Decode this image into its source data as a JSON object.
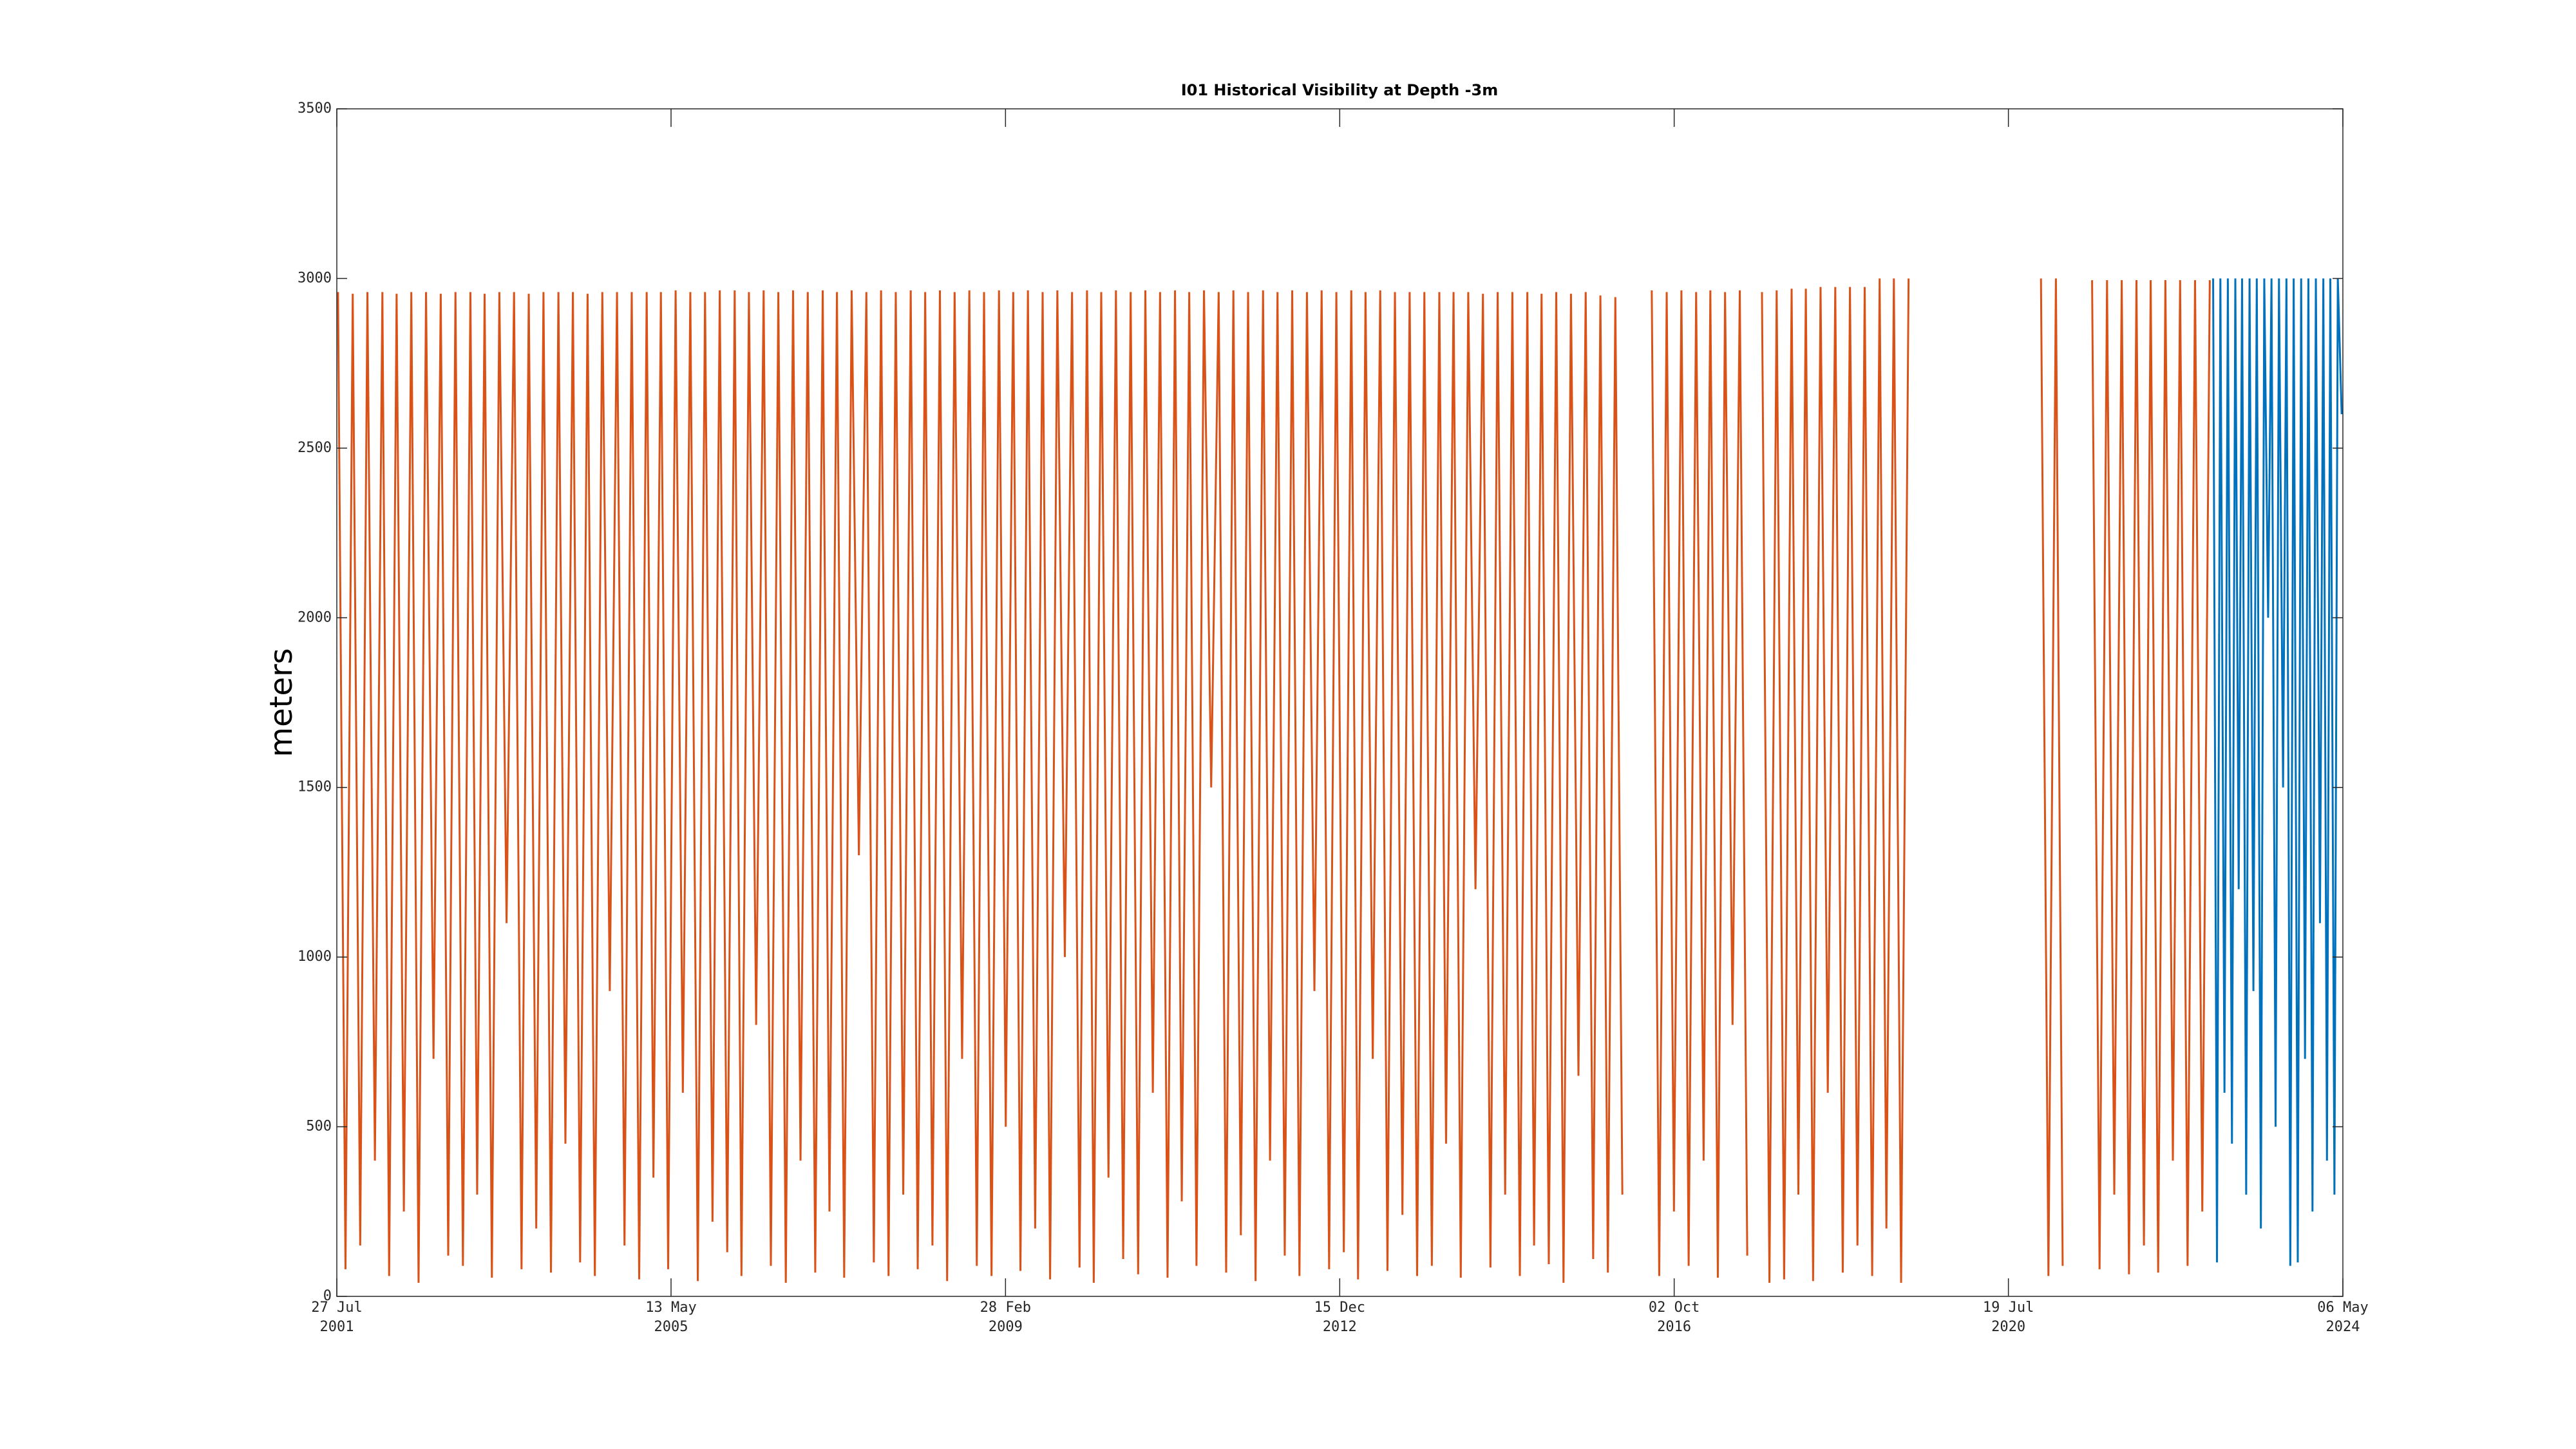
{
  "chart_data": {
    "type": "line",
    "title": "I01 Historical Visibility at Depth -3m",
    "y_label": "meters",
    "xlim": [
      "2001-07-27",
      "2024-05-06"
    ],
    "xticks": [
      {
        "value": "2001-07-27",
        "label": [
          "27 Jul",
          "2001"
        ]
      },
      {
        "value": "2005-05-13",
        "label": [
          "13 May",
          "2005"
        ]
      },
      {
        "value": "2009-02-28",
        "label": [
          "28 Feb",
          "2009"
        ]
      },
      {
        "value": "2012-12-15",
        "label": [
          "15 Dec",
          "2012"
        ]
      },
      {
        "value": "2016-10-02",
        "label": [
          "02 Oct",
          "2016"
        ]
      },
      {
        "value": "2020-07-19",
        "label": [
          "19 Jul",
          "2020"
        ]
      },
      {
        "value": "2024-05-06",
        "label": [
          "06 May",
          "2024"
        ]
      }
    ],
    "ylim": [
      0,
      3500
    ],
    "yticks": [
      0,
      500,
      1000,
      1500,
      2000,
      2500,
      3000,
      3500
    ],
    "series": [
      {
        "color": "#D95319",
        "x": [
          "2001-08",
          "2001-09",
          "2001-10",
          "2001-11",
          "2001-12",
          "2002-01",
          "2002-02",
          "2002-03",
          "2002-04",
          "2002-05",
          "2002-06",
          "2002-07",
          "2002-08",
          "2002-09",
          "2002-10",
          "2002-11",
          "2002-12",
          "2003-01",
          "2003-02",
          "2003-03",
          "2003-04",
          "2003-05",
          "2003-06",
          "2003-07",
          "2003-08",
          "2003-09",
          "2003-10",
          "2003-11",
          "2003-12",
          "2004-01",
          "2004-02",
          "2004-03",
          "2004-04",
          "2004-05",
          "2004-06",
          "2004-07",
          "2004-08",
          "2004-09",
          "2004-10",
          "2004-11",
          "2004-12",
          "2005-01",
          "2005-02",
          "2005-03",
          "2005-04",
          "2005-05",
          "2005-06",
          "2005-07",
          "2005-08",
          "2005-09",
          "2005-10",
          "2005-11",
          "2005-12",
          "2006-01",
          "2006-02",
          "2006-03",
          "2006-04",
          "2006-05",
          "2006-06",
          "2006-07",
          "2006-08",
          "2006-09",
          "2006-10",
          "2006-11",
          "2006-12",
          "2007-01",
          "2007-02",
          "2007-03",
          "2007-04",
          "2007-05",
          "2007-06",
          "2007-07",
          "2007-08",
          "2007-09",
          "2007-10",
          "2007-11",
          "2007-12",
          "2008-01",
          "2008-02",
          "2008-03",
          "2008-04",
          "2008-05",
          "2008-06",
          "2008-07",
          "2008-08",
          "2008-09",
          "2008-10",
          "2008-11",
          "2008-12",
          "2009-01",
          "2009-02",
          "2009-03",
          "2009-04",
          "2009-05",
          "2009-06",
          "2009-07",
          "2009-08",
          "2009-09",
          "2009-10",
          "2009-11",
          "2009-12",
          "2010-01",
          "2010-02",
          "2010-03",
          "2010-04",
          "2010-05",
          "2010-06",
          "2010-07",
          "2010-08",
          "2010-09",
          "2010-10",
          "2010-11",
          "2010-12",
          "2011-01",
          "2011-02",
          "2011-03",
          "2011-04",
          "2011-05",
          "2011-06",
          "2011-07",
          "2011-08",
          "2011-09",
          "2011-10",
          "2011-11",
          "2011-12",
          "2012-01",
          "2012-02",
          "2012-03",
          "2012-04",
          "2012-05",
          "2012-06",
          "2012-07",
          "2012-08",
          "2012-09",
          "2012-10",
          "2012-11",
          "2012-12",
          "2013-01",
          "2013-02",
          "2013-03",
          "2013-04",
          "2013-05",
          "2013-06",
          "2013-07",
          "2013-08",
          "2013-09",
          "2013-10",
          "2013-11",
          "2013-12",
          "2014-01",
          "2014-02",
          "2014-03",
          "2014-04",
          "2014-05",
          "2014-06",
          "2014-07",
          "2014-08",
          "2014-09",
          "2014-10",
          "2014-11",
          "2014-12",
          "2015-01",
          "2015-02",
          "2015-03",
          "2015-04",
          "2015-05",
          "2015-06",
          "2015-07",
          "2015-08",
          "2015-09",
          "2015-10",
          "2015-11",
          "2015-12",
          "2016-01",
          "2016-02",
          "2016-03",
          "2016-04",
          "2016-05",
          "2016-06",
          "2016-07",
          "2016-08",
          "2016-09",
          "2016-10",
          "2016-11",
          "2016-12",
          "2017-01",
          "2017-02",
          "2017-03",
          "2017-04",
          "2017-05",
          "2017-06",
          "2017-07",
          "2017-08",
          "2017-09",
          "2017-10",
          "2017-11",
          "2017-12",
          "2018-01",
          "2018-02",
          "2018-03",
          "2018-04",
          "2018-05",
          "2018-06",
          "2018-07",
          "2018-08",
          "2018-09",
          "2018-10",
          "2018-11",
          "2018-12",
          "2019-01",
          "2019-02",
          "2019-03",
          "2019-04",
          "2019-05",
          "2019-06",
          "2019-07",
          "2019-08",
          "2019-09",
          "2019-10",
          "2019-11",
          "2019-12",
          "2020-01",
          "2020-02",
          "2020-03",
          "2020-04",
          "2020-05",
          "2020-06",
          "2020-07",
          "2020-08",
          "2020-09",
          "2020-10",
          "2020-11",
          "2020-12",
          "2021-01",
          "2021-02",
          "2021-03",
          "2021-04",
          "2021-05",
          "2021-06",
          "2021-07",
          "2021-08",
          "2021-09",
          "2021-10",
          "2021-11",
          "2021-12",
          "2022-01",
          "2022-02",
          "2022-03",
          "2022-04",
          "2022-05",
          "2022-06",
          "2022-07",
          "2022-08",
          "2022-09",
          "2022-10",
          "2022-11"
        ],
        "values": [
          2960,
          80,
          2955,
          150,
          2960,
          400,
          2960,
          60,
          2955,
          250,
          2960,
          40,
          2960,
          700,
          2955,
          120,
          2960,
          90,
          2960,
          300,
          2955,
          55,
          2960,
          1100,
          2960,
          80,
          2955,
          200,
          2960,
          70,
          2960,
          450,
          2960,
          100,
          2955,
          60,
          2960,
          900,
          2960,
          150,
          2960,
          50,
          2960,
          350,
          2960,
          80,
          2965,
          600,
          2960,
          45,
          2960,
          220,
          2965,
          130,
          2965,
          60,
          2960,
          800,
          2965,
          90,
          2960,
          40,
          2965,
          400,
          2960,
          70,
          2965,
          250,
          2960,
          55,
          2965,
          1300,
          2960,
          100,
          2965,
          60,
          2960,
          300,
          2965,
          80,
          2960,
          150,
          2965,
          45,
          2960,
          700,
          2965,
          90,
          2960,
          60,
          2965,
          500,
          2960,
          75,
          2965,
          200,
          2960,
          50,
          2965,
          1000,
          2960,
          85,
          2965,
          40,
          2960,
          350,
          2965,
          110,
          2960,
          65,
          2965,
          600,
          2960,
          55,
          2965,
          280,
          2960,
          90,
          2965,
          1500,
          2960,
          70,
          2965,
          180,
          2960,
          45,
          2965,
          400,
          2960,
          120,
          2965,
          60,
          2960,
          900,
          2965,
          80,
          2960,
          130,
          2965,
          50,
          2960,
          700,
          2965,
          75,
          2960,
          240,
          2960,
          60,
          2960,
          90,
          2960,
          450,
          2960,
          55,
          2960,
          1200,
          2955,
          85,
          2960,
          300,
          2960,
          60,
          2960,
          150,
          2955,
          95,
          2960,
          40,
          2955,
          650,
          2960,
          110,
          2950,
          70,
          2945,
          300,
          null,
          null,
          null,
          2965,
          60,
          2960,
          250,
          2965,
          90,
          2960,
          400,
          2965,
          55,
          2960,
          800,
          2965,
          120,
          null,
          2960,
          40,
          2965,
          50,
          2970,
          300,
          2970,
          45,
          2975,
          600,
          2975,
          70,
          2975,
          150,
          2975,
          60,
          3000,
          200,
          3000,
          40,
          3000,
          null,
          null,
          null,
          null,
          null,
          null,
          null,
          null,
          null,
          null,
          null,
          null,
          null,
          null,
          null,
          null,
          null,
          3000,
          60,
          3000,
          90,
          null,
          null,
          null,
          2995,
          80,
          2995,
          300,
          2995,
          65,
          2995,
          150,
          2995,
          70,
          2995,
          400,
          2995,
          90,
          2995,
          250,
          2995
        ]
      },
      {
        "color": "#0072BD",
        "x": [
          "2022-11-15",
          "2022-12-01",
          "2022-12-15",
          "2023-01-01",
          "2023-01-15",
          "2023-02-01",
          "2023-02-15",
          "2023-03-01",
          "2023-03-15",
          "2023-04-01",
          "2023-04-15",
          "2023-05-01",
          "2023-05-15",
          "2023-06-01",
          "2023-06-15",
          "2023-07-01",
          "2023-07-15",
          "2023-08-01",
          "2023-08-15",
          "2023-09-01",
          "2023-09-15",
          "2023-10-01",
          "2023-10-15",
          "2023-11-01",
          "2023-11-15",
          "2023-12-01",
          "2023-12-15",
          "2024-01-01",
          "2024-01-15",
          "2024-02-01",
          "2024-02-15",
          "2024-03-01",
          "2024-03-15",
          "2024-04-01",
          "2024-04-15",
          "2024-05-01"
        ],
        "values": [
          3000,
          100,
          3000,
          600,
          3000,
          450,
          3000,
          1200,
          3000,
          300,
          3000,
          900,
          3000,
          200,
          3000,
          2000,
          3000,
          500,
          3000,
          1500,
          3000,
          90,
          3000,
          100,
          3000,
          700,
          3000,
          250,
          3000,
          1100,
          3000,
          400,
          3000,
          300,
          3000,
          2600
        ]
      }
    ]
  }
}
